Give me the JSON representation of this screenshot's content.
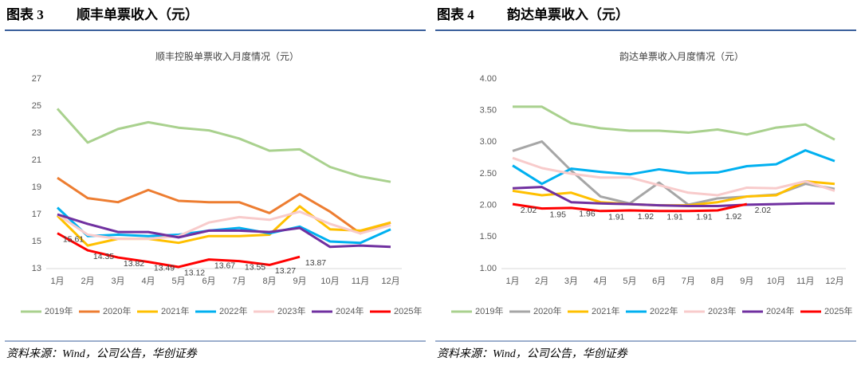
{
  "chart_data": [
    {
      "type": "line",
      "figure_label": "图表 3",
      "heading": "顺丰单票收入（元）",
      "title": "顺丰控股单票收入月度情况（元）",
      "source": "资料来源：Wind，公司公告，华创证券",
      "categories": [
        "1月",
        "2月",
        "3月",
        "4月",
        "5月",
        "6月",
        "7月",
        "8月",
        "9月",
        "10月",
        "11月",
        "12月"
      ],
      "ylim": [
        13,
        27
      ],
      "yticks": [
        13,
        15,
        17,
        19,
        21,
        23,
        25,
        27
      ],
      "grid": false,
      "legend": "bottom",
      "data_labels_series": 6,
      "series": [
        {
          "name": "2019年",
          "color": "#a9d18e",
          "values": [
            24.8,
            22.3,
            23.3,
            23.8,
            23.4,
            23.2,
            22.6,
            21.7,
            21.8,
            20.5,
            19.8,
            19.4
          ]
        },
        {
          "name": "2020年",
          "color": "#ed7d31",
          "values": [
            19.7,
            18.2,
            17.9,
            18.8,
            18.0,
            17.9,
            17.9,
            17.1,
            18.5,
            17.2,
            15.6,
            16.4
          ]
        },
        {
          "name": "2021年",
          "color": "#ffc000",
          "values": [
            16.9,
            14.7,
            15.2,
            15.2,
            14.9,
            15.4,
            15.4,
            15.5,
            17.6,
            15.9,
            15.8,
            16.4
          ]
        },
        {
          "name": "2022年",
          "color": "#00b0f0",
          "values": [
            17.5,
            15.4,
            15.5,
            15.4,
            15.5,
            15.8,
            16.0,
            15.6,
            16.1,
            15.0,
            14.9,
            15.9
          ]
        },
        {
          "name": "2023年",
          "color": "#f8cbcb",
          "values": [
            17.0,
            15.5,
            15.2,
            15.2,
            15.4,
            16.4,
            16.8,
            16.6,
            17.2,
            16.3,
            15.6,
            16.2
          ]
        },
        {
          "name": "2024年",
          "color": "#7030a0",
          "values": [
            17.0,
            16.3,
            15.7,
            15.7,
            15.3,
            15.8,
            15.8,
            15.7,
            16.0,
            14.6,
            14.7,
            14.6
          ]
        },
        {
          "name": "2025年",
          "color": "#ff0000",
          "values": [
            15.61,
            14.35,
            13.82,
            13.49,
            13.12,
            13.67,
            13.55,
            13.27,
            13.87,
            null,
            null,
            null
          ]
        }
      ]
    },
    {
      "type": "line",
      "figure_label": "图表 4",
      "heading": "韵达单票收入（元）",
      "title": "韵达单票收入月度情况（元）",
      "source": "资料来源：Wind，公司公告，华创证券",
      "categories": [
        "1月",
        "2月",
        "3月",
        "4月",
        "5月",
        "6月",
        "7月",
        "8月",
        "9月",
        "10月",
        "11月",
        "12月"
      ],
      "ylim": [
        1,
        4
      ],
      "yticks": [
        {
          "value": 1,
          "label": "1.00"
        },
        {
          "value": 1.5,
          "label": "1.50"
        },
        {
          "value": 2,
          "label": "2.00"
        },
        {
          "value": 2.5,
          "label": "2.50"
        },
        {
          "value": 3,
          "label": "3.00"
        },
        {
          "value": 3.5,
          "label": "3.50"
        },
        {
          "value": 4,
          "label": "4.00"
        }
      ],
      "grid": false,
      "legend": "bottom",
      "data_labels_series": 6,
      "series": [
        {
          "name": "2019年",
          "color": "#a9d18e",
          "values": [
            3.56,
            3.56,
            3.3,
            3.22,
            3.18,
            3.18,
            3.15,
            3.2,
            3.12,
            3.23,
            3.28,
            3.04
          ]
        },
        {
          "name": "2020年",
          "color": "#a6a6a6",
          "values": [
            2.86,
            3.01,
            2.55,
            2.14,
            2.03,
            2.36,
            2.01,
            2.11,
            2.14,
            2.17,
            2.34,
            2.26
          ]
        },
        {
          "name": "2021年",
          "color": "#ffc000",
          "values": [
            2.23,
            2.16,
            2.2,
            2.05,
            2.02,
            2.0,
            2.0,
            2.05,
            2.14,
            2.16,
            2.38,
            2.34
          ]
        },
        {
          "name": "2022年",
          "color": "#00b0f0",
          "values": [
            2.63,
            2.34,
            2.58,
            2.53,
            2.49,
            2.57,
            2.51,
            2.52,
            2.62,
            2.65,
            2.87,
            2.7
          ]
        },
        {
          "name": "2023年",
          "color": "#f8cbcb",
          "values": [
            2.75,
            2.59,
            2.5,
            2.44,
            2.44,
            2.32,
            2.2,
            2.16,
            2.28,
            2.27,
            2.38,
            2.23
          ]
        },
        {
          "name": "2024年",
          "color": "#7030a0",
          "values": [
            2.27,
            2.29,
            2.05,
            2.03,
            2.02,
            2.0,
            1.99,
            1.99,
            2.01,
            2.02,
            2.03,
            2.03
          ]
        },
        {
          "name": "2025年",
          "color": "#ff0000",
          "values": [
            2.02,
            1.95,
            1.96,
            1.91,
            1.92,
            1.91,
            1.91,
            1.92,
            2.02,
            null,
            null,
            null
          ]
        }
      ]
    }
  ]
}
